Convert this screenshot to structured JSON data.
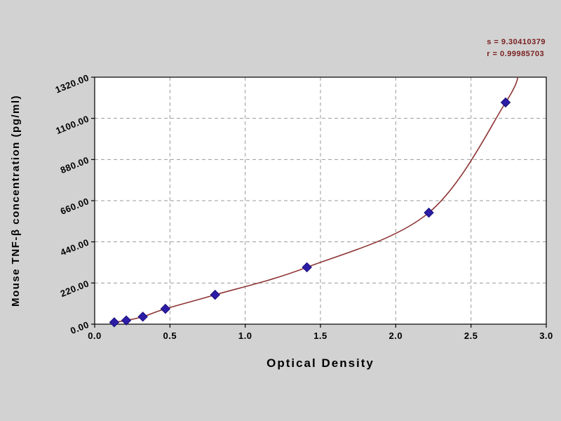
{
  "chart_data": {
    "type": "scatter",
    "title": "",
    "xlabel": "Optical Density",
    "ylabel": "Mouse TNF-β concentration (pg/ml)",
    "xlim": [
      0.0,
      3.0
    ],
    "ylim": [
      0.0,
      1320.0
    ],
    "x_ticks": [
      0.0,
      0.5,
      1.0,
      1.5,
      2.0,
      2.5,
      3.0
    ],
    "x_tick_labels": [
      "0.0",
      "0.5",
      "1.0",
      "1.5",
      "2.0",
      "2.5",
      "3.0"
    ],
    "y_ticks": [
      0,
      220,
      440,
      660,
      880,
      1100,
      1320
    ],
    "y_tick_labels": [
      "0.00",
      "220.00",
      "440.00",
      "660.00",
      "880.00",
      "1100.00",
      "1320.00"
    ],
    "grid": true,
    "legend": "none",
    "annotations": [
      "s = 9.30410379",
      "r = 0.99985703"
    ],
    "series": [
      {
        "name": "fit-curve",
        "type": "line",
        "color": "#8e3434",
        "x": [
          0.13,
          0.21,
          0.32,
          0.47,
          0.8,
          1.41,
          2.22,
          2.73,
          2.82
        ],
        "y": [
          10,
          20,
          40,
          82,
          157,
          304,
          596,
          1185,
          1350
        ]
      },
      {
        "name": "standard-points",
        "type": "scatter",
        "marker": "diamond",
        "color": "#2c1ca6",
        "x": [
          0.13,
          0.21,
          0.32,
          0.47,
          0.8,
          1.41,
          2.22,
          2.73
        ],
        "y": [
          10,
          20,
          40,
          82,
          157,
          304,
          596,
          1185
        ]
      }
    ],
    "colors": {
      "plot_background": "#ffffff",
      "outer_background": "#d2d2d2",
      "grid": "#999999",
      "axis": "#000000",
      "curve": "#8e3434",
      "marker": "#2c1ca6",
      "marker_edge": "#1a0f7a",
      "annotation_text": "#7a2020",
      "tick_label": "#000000"
    }
  }
}
